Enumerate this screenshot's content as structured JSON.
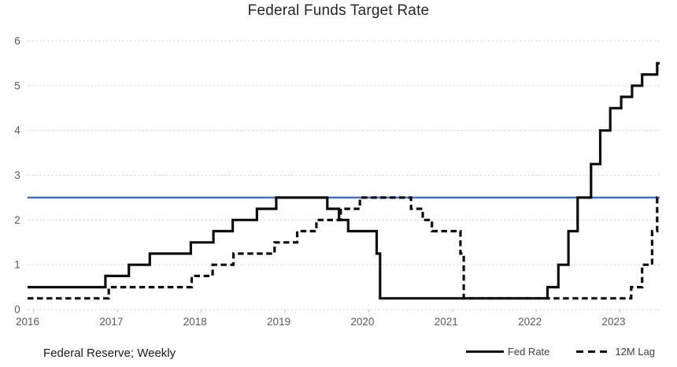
{
  "chart_data": {
    "type": "line",
    "subtype": "step",
    "title": "Federal Funds Target Rate",
    "source_note": "Federal Reserve; Weekly",
    "xlabel": "",
    "ylabel": "",
    "xlim": [
      2016,
      2023.55
    ],
    "ylim": [
      0,
      6
    ],
    "x_ticks": [
      2016,
      2017,
      2018,
      2019,
      2020,
      2021,
      2022,
      2023
    ],
    "y_ticks": [
      0,
      1,
      2,
      3,
      4,
      5,
      6
    ],
    "grid": true,
    "legend_position": "bottom-right",
    "reference_line": {
      "y": 2.5,
      "color": "#4472C4"
    },
    "series": [
      {
        "name": "Fed Rate",
        "line_style": "solid",
        "color": "#0d0d0d",
        "step_points": [
          [
            2016.0,
            0.5
          ],
          [
            2016.93,
            0.75
          ],
          [
            2017.21,
            1.0
          ],
          [
            2017.46,
            1.25
          ],
          [
            2017.95,
            1.5
          ],
          [
            2018.22,
            1.75
          ],
          [
            2018.45,
            2.0
          ],
          [
            2018.74,
            2.25
          ],
          [
            2018.97,
            2.5
          ],
          [
            2019.58,
            2.25
          ],
          [
            2019.72,
            2.0
          ],
          [
            2019.83,
            1.75
          ],
          [
            2020.17,
            1.25
          ],
          [
            2020.21,
            0.25
          ],
          [
            2022.21,
            0.5
          ],
          [
            2022.34,
            1.0
          ],
          [
            2022.46,
            1.75
          ],
          [
            2022.57,
            2.5
          ],
          [
            2022.73,
            3.25
          ],
          [
            2022.84,
            4.0
          ],
          [
            2022.96,
            4.5
          ],
          [
            2023.09,
            4.75
          ],
          [
            2023.22,
            5.0
          ],
          [
            2023.34,
            5.25
          ],
          [
            2023.52,
            5.5
          ]
        ]
      },
      {
        "name": "12M Lag",
        "line_style": "dashed",
        "color": "#0d0d0d",
        "step_points": [
          [
            2016.0,
            0.25
          ],
          [
            2016.97,
            0.5
          ],
          [
            2017.96,
            0.75
          ],
          [
            2018.21,
            1.0
          ],
          [
            2018.46,
            1.25
          ],
          [
            2018.95,
            1.5
          ],
          [
            2019.22,
            1.75
          ],
          [
            2019.45,
            2.0
          ],
          [
            2019.74,
            2.25
          ],
          [
            2019.97,
            2.5
          ],
          [
            2020.58,
            2.25
          ],
          [
            2020.72,
            2.0
          ],
          [
            2020.83,
            1.75
          ],
          [
            2021.17,
            1.25
          ],
          [
            2021.21,
            0.25
          ],
          [
            2023.21,
            0.5
          ],
          [
            2023.34,
            1.0
          ],
          [
            2023.46,
            1.75
          ],
          [
            2023.52,
            2.5
          ]
        ]
      }
    ],
    "colors": {
      "grid": "#d9d9d9",
      "axis_tick": "#bfbfbf",
      "axis_label": "#595959",
      "title": "#262626",
      "reference": "#4472C4",
      "series_line": "#0d0d0d"
    }
  }
}
